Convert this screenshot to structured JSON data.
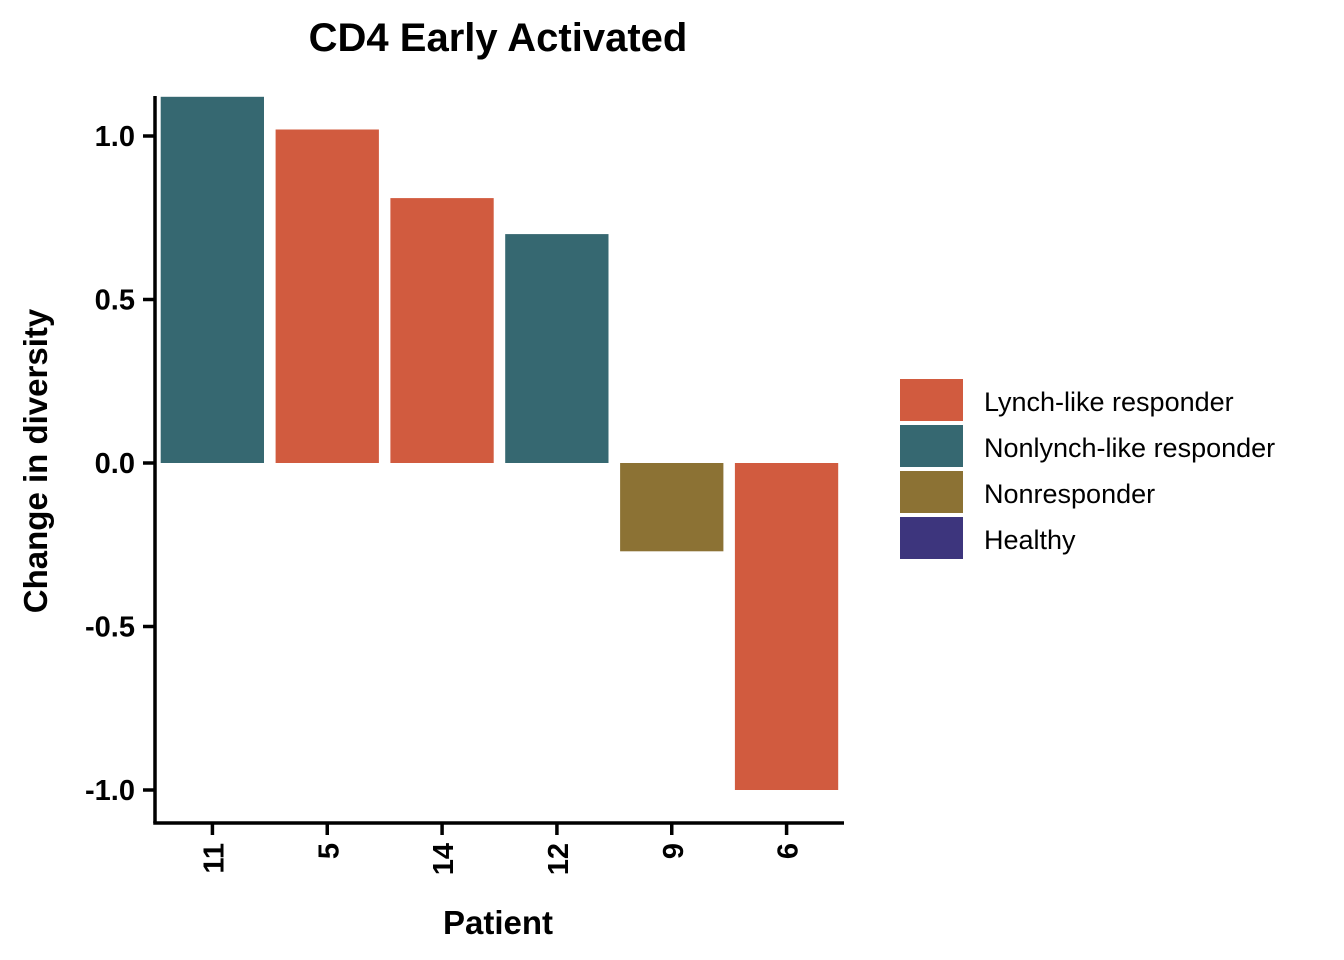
{
  "chart_data": {
    "type": "bar",
    "title": "CD4 Early Activated",
    "xlabel": "Patient",
    "ylabel": "Change in diversity",
    "ylim": [
      -1.05,
      1.12
    ],
    "yticks": [
      1.0,
      0.5,
      0.0,
      -0.5,
      -1.0
    ],
    "ytick_labels": [
      "1.0",
      "0.5",
      "0.0",
      "-0.5",
      "-1.0"
    ],
    "categories": [
      "11",
      "5",
      "14",
      "12",
      "9",
      "6"
    ],
    "values": [
      1.12,
      1.02,
      0.81,
      0.7,
      -0.27,
      -1.0
    ],
    "groups": [
      "Nonlynch-like responder",
      "Lynch-like responder",
      "Lynch-like responder",
      "Nonlynch-like responder",
      "Nonresponder",
      "Lynch-like responder"
    ],
    "grid": false,
    "legend_position": "right",
    "legend": [
      {
        "name": "Lynch-like responder",
        "color": "#D15B3F"
      },
      {
        "name": "Nonlynch-like responder",
        "color": "#366871"
      },
      {
        "name": "Nonresponder",
        "color": "#8C7234"
      },
      {
        "name": "Healthy",
        "color": "#3D357D"
      }
    ]
  }
}
